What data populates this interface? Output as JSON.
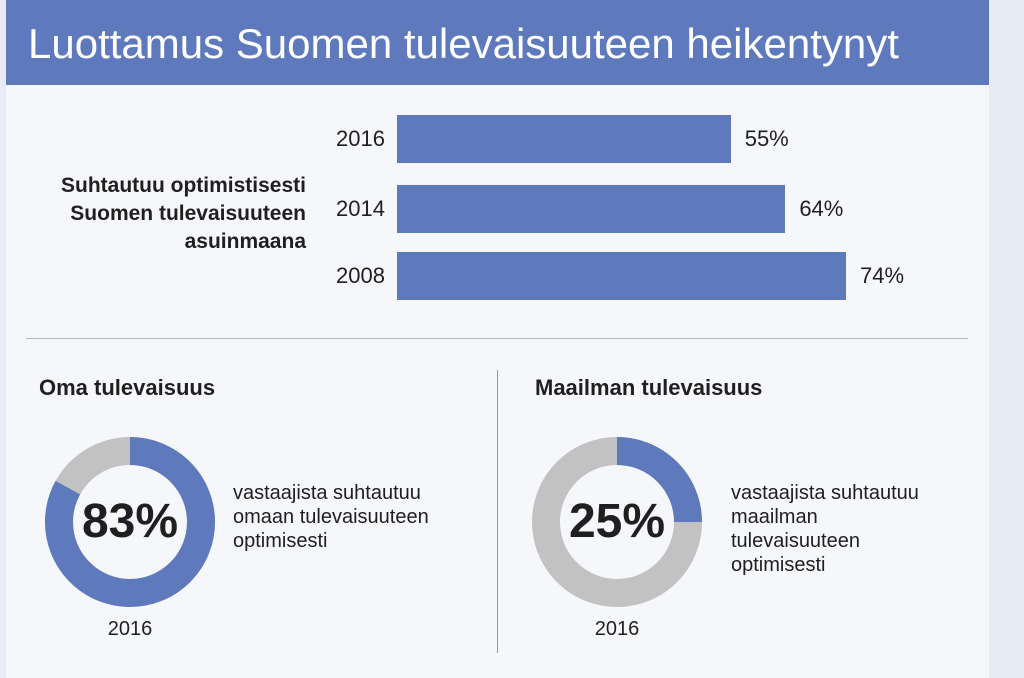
{
  "title": "Luottamus Suomen tulevaisuuteen heikentynyt",
  "colors": {
    "accent": "#5f79bd",
    "remainder": "#c2c2c2"
  },
  "chart_data": [
    {
      "type": "bar",
      "orientation": "horizontal",
      "group_label": [
        "Suhtautuu optimistisesti",
        "Suomen tulevaisuuteen",
        "asuinmaana"
      ],
      "categories": [
        "2016",
        "2014",
        "2008"
      ],
      "values": [
        55,
        64,
        74
      ],
      "value_labels": [
        "55%",
        "64%",
        "74%"
      ]
    },
    {
      "type": "pie",
      "title": "Oma tulevaisuus",
      "value": 83,
      "value_label": "83%",
      "description": [
        "vastaajista suhtautuu",
        "omaan tulevaisuuteen",
        "optimisesti"
      ],
      "year": "2016"
    },
    {
      "type": "pie",
      "title": "Maailman tulevaisuus",
      "value": 25,
      "value_label": "25%",
      "description": [
        "vastaajista suhtautuu",
        "maailman",
        "tulevaisuuteen",
        "optimisesti"
      ],
      "year": "2016"
    }
  ]
}
